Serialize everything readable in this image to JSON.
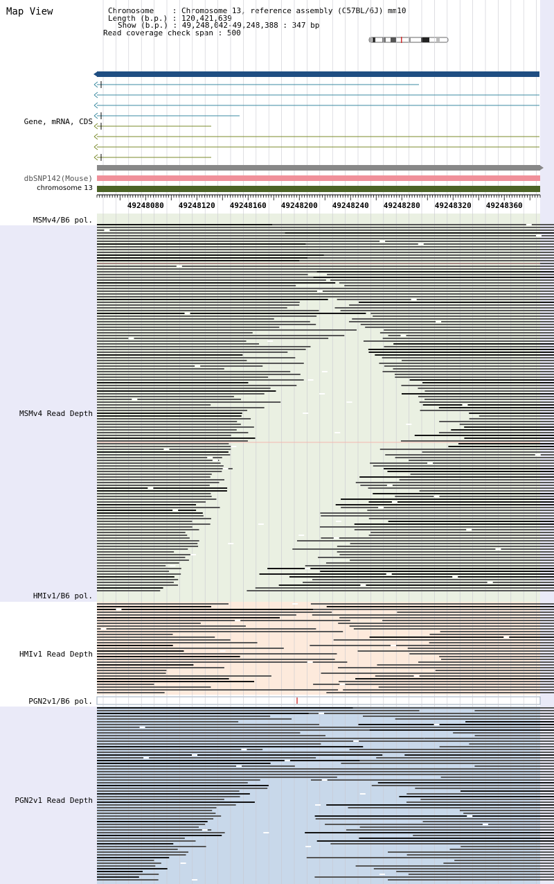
{
  "title": "Map View",
  "info": {
    "chromosome_label": "Chromosome",
    "chromosome_value": "Chromosome 13, reference assembly (C57BL/6J) mm10",
    "length_label": "Length (b.p.)",
    "length_value": "120,421,639",
    "show_label": "Show (b.p.)",
    "show_value": "49,248,042-49,248,388 : 347 bp",
    "span_label": "Read coverage check span",
    "span_value": "500"
  },
  "tracks": {
    "gene": "Gene, mRNA, CDS",
    "dbsnp": "dbSNP142(Mouse)",
    "chrom": "chromosome 13",
    "msm_pol": "MSMv4/B6 pol.",
    "msm_depth": "MSMv4 Read Depth",
    "hmi_pol": "HMIv1/B6 pol.",
    "hmi_depth": "HMIv1 Read Depth",
    "pgn_pol": "PGN2v1/B6 pol.",
    "pgn_depth": "PGN2v1 Read Depth"
  },
  "ruler": {
    "ticks": [
      "49248080",
      "49248120",
      "49248160",
      "49248200",
      "49248240",
      "49248280",
      "49248320",
      "49248360"
    ],
    "start_bp": 49248042,
    "end_bp": 49248388
  },
  "colors": {
    "gene_bar": "#1f4e82",
    "mrna_line": "#3a8aa0",
    "cds_line": "#7a8a2a",
    "dbsnp": "#888888",
    "snp_pink": "#f0909a",
    "chrom_bar": "#4c6326",
    "msm_bg": "#eaf0e2",
    "hmi_bg": "#fdeadc",
    "pgn_bg": "#c8d8ea",
    "read_gray": "#555555",
    "read_dark": "#111111",
    "variant_red": "#d03030"
  }
}
